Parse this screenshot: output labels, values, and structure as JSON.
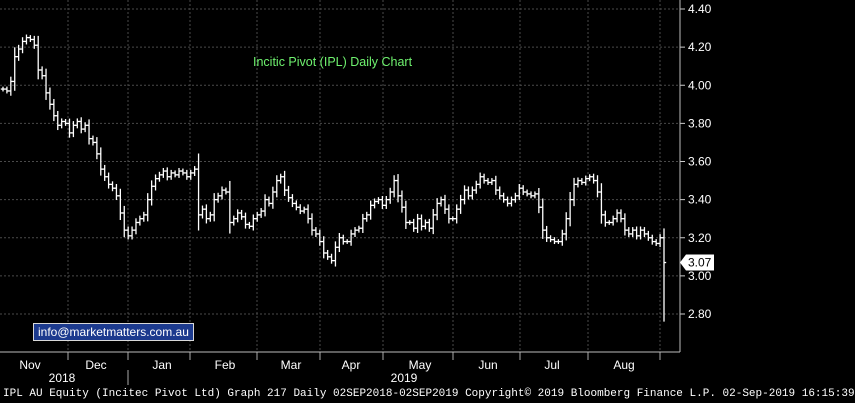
{
  "chart_data": {
    "type": "ohlc",
    "title": "Incitic Pivot (IPL) Daily Chart",
    "y_ticks": [
      "4.40",
      "4.20",
      "4.00",
      "3.80",
      "3.60",
      "3.40",
      "3.20",
      "3.00",
      "2.80"
    ],
    "ylim": [
      2.65,
      4.42
    ],
    "last_price_label": "3.07",
    "months": [
      "Nov",
      "Dec",
      "Jan",
      "Feb",
      "Mar",
      "Apr",
      "May",
      "Jun",
      "Jul",
      "Aug"
    ],
    "years": [
      "2018",
      "2019"
    ],
    "grid": true,
    "series": [
      {
        "values": [
          3.98,
          3.97,
          4.02,
          4.15,
          4.19,
          4.23,
          4.25,
          4.24,
          4.21,
          4.08,
          4.05,
          3.96,
          3.9,
          3.84,
          3.79,
          3.81,
          3.8,
          3.75,
          3.79,
          3.81,
          3.77,
          3.79,
          3.72,
          3.7,
          3.64,
          3.56,
          3.52,
          3.48,
          3.46,
          3.42,
          3.33,
          3.24,
          3.21,
          3.24,
          3.28,
          3.3,
          3.32,
          3.4,
          3.47,
          3.51,
          3.53,
          3.55,
          3.52,
          3.54,
          3.53,
          3.55,
          3.54,
          3.52,
          3.54,
          3.56,
          3.32,
          3.35,
          3.3,
          3.32,
          3.4,
          3.42,
          3.45,
          3.44,
          3.28,
          3.3,
          3.33,
          3.31,
          3.27,
          3.26,
          3.3,
          3.32,
          3.34,
          3.4,
          3.38,
          3.44,
          3.5,
          3.52,
          3.45,
          3.41,
          3.38,
          3.36,
          3.34,
          3.35,
          3.3,
          3.24,
          3.22,
          3.18,
          3.12,
          3.1,
          3.08,
          3.15,
          3.2,
          3.18,
          3.18,
          3.22,
          3.24,
          3.25,
          3.3,
          3.32,
          3.37,
          3.39,
          3.4,
          3.37,
          3.4,
          3.44,
          3.5,
          3.42,
          3.36,
          3.28,
          3.28,
          3.25,
          3.3,
          3.26,
          3.28,
          3.25,
          3.32,
          3.38,
          3.4,
          3.35,
          3.3,
          3.3,
          3.35,
          3.4,
          3.45,
          3.42,
          3.45,
          3.48,
          3.52,
          3.5,
          3.49,
          3.5,
          3.45,
          3.42,
          3.4,
          3.38,
          3.4,
          3.42,
          3.46,
          3.44,
          3.43,
          3.42,
          3.43,
          3.36,
          3.24,
          3.2,
          3.19,
          3.18,
          3.18,
          3.22,
          3.3,
          3.4,
          3.48,
          3.5,
          3.49,
          3.51,
          3.52,
          3.5,
          3.44,
          3.32,
          3.28,
          3.28,
          3.3,
          3.33,
          3.3,
          3.24,
          3.22,
          3.24,
          3.21,
          3.24,
          3.22,
          3.2,
          3.18,
          3.17,
          3.2,
          3.07
        ]
      }
    ]
  },
  "footer": {
    "text": "IPL AU Equity (Incitec Pivot Ltd) Graph 217  Daily 02SEP2018-02SEP2019 Copyright© 2019 Bloomberg Finance L.P. 02-Sep-2019 16:15:39"
  },
  "email": "info@marketmatters.com.au"
}
